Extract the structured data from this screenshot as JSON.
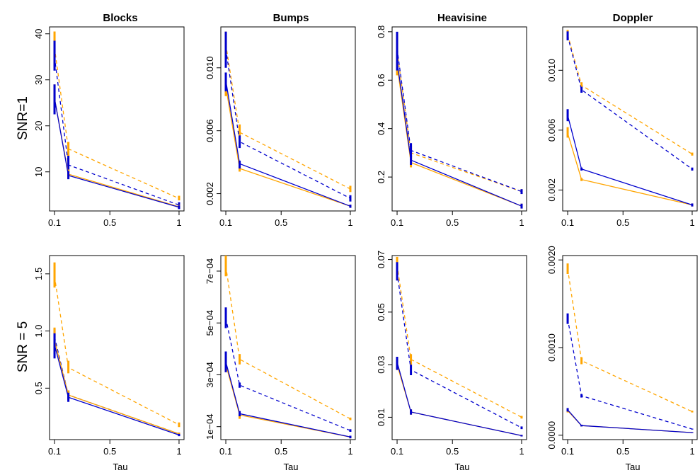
{
  "figure": {
    "column_titles": [
      "Blocks",
      "Bumps",
      "Heavisine",
      "Doppler"
    ],
    "row_labels": [
      "SNR=1",
      "SNR = 5"
    ],
    "x_label": "Tau",
    "colors": {
      "orange": "#FFA500",
      "blue": "#0000CD"
    }
  },
  "chart_data": [
    {
      "type": "line",
      "row": 0,
      "col": 0,
      "title": "Blocks",
      "row_label": "SNR=1",
      "xlabel": "Tau",
      "x": [
        0.1,
        0.2,
        1.0
      ],
      "xticks": [
        {
          "v": 0.1,
          "t": "0.1"
        },
        {
          "v": 0.5,
          "t": "0.5"
        },
        {
          "v": 1.0,
          "t": "1"
        }
      ],
      "yticks": [
        {
          "v": 10,
          "t": "10"
        },
        {
          "v": 20,
          "t": "20"
        },
        {
          "v": 30,
          "t": "30"
        },
        {
          "v": 40,
          "t": "40"
        }
      ],
      "ylim": [
        1.5,
        41.5
      ],
      "series": [
        {
          "color": "orange",
          "dash": true,
          "values": [
            37,
            15,
            4.2
          ],
          "errlo": [
            33,
            13.5,
            3.8
          ],
          "errhi": [
            40.5,
            16.5,
            4.8
          ]
        },
        {
          "color": "blue",
          "dash": true,
          "values": [
            35,
            11.5,
            2.8
          ],
          "errlo": [
            32,
            10.2,
            2.2
          ],
          "errhi": [
            38.5,
            13.5,
            3.4
          ]
        },
        {
          "color": "orange",
          "dash": false,
          "values": [
            26,
            9.5,
            2.4
          ],
          "errlo": [
            23,
            8.5,
            2.0
          ],
          "errhi": [
            29,
            10.5,
            2.8
          ]
        },
        {
          "color": "blue",
          "dash": false,
          "values": [
            26,
            9.2,
            2.3
          ],
          "errlo": [
            22.5,
            8.4,
            1.9
          ],
          "errhi": [
            29,
            10.2,
            2.7
          ]
        }
      ]
    },
    {
      "type": "line",
      "row": 0,
      "col": 1,
      "title": "Bumps",
      "row_label": "",
      "xlabel": "Tau",
      "x": [
        0.1,
        0.2,
        1.0
      ],
      "xticks": [
        {
          "v": 0.1,
          "t": "0.1"
        },
        {
          "v": 0.5,
          "t": "0.5"
        },
        {
          "v": 1.0,
          "t": "1"
        }
      ],
      "yticks": [
        {
          "v": 0.002,
          "t": "0.002"
        },
        {
          "v": 0.006,
          "t": "0.006"
        },
        {
          "v": 0.01,
          "t": "0.010"
        }
      ],
      "ylim": [
        0.0009,
        0.0126
      ],
      "series": [
        {
          "color": "orange",
          "dash": true,
          "values": [
            0.0115,
            0.0059,
            0.0023
          ],
          "errlo": [
            0.0105,
            0.0055,
            0.0021
          ],
          "errhi": [
            0.0123,
            0.0064,
            0.0025
          ]
        },
        {
          "color": "blue",
          "dash": true,
          "values": [
            0.0112,
            0.0053,
            0.0017
          ],
          "errlo": [
            0.01,
            0.0049,
            0.0015
          ],
          "errhi": [
            0.0123,
            0.0057,
            0.0019
          ]
        },
        {
          "color": "orange",
          "dash": false,
          "values": [
            0.0088,
            0.0036,
            0.0012
          ],
          "errlo": [
            0.0082,
            0.0034,
            0.0011
          ],
          "errhi": [
            0.0093,
            0.0038,
            0.0013
          ]
        },
        {
          "color": "blue",
          "dash": false,
          "values": [
            0.0092,
            0.0039,
            0.0012
          ],
          "errlo": [
            0.0085,
            0.0036,
            0.0011
          ],
          "errhi": [
            0.0097,
            0.0041,
            0.0013
          ]
        }
      ]
    },
    {
      "type": "line",
      "row": 0,
      "col": 2,
      "title": "Heavisine",
      "row_label": "",
      "xlabel": "Tau",
      "x": [
        0.1,
        0.2,
        1.0
      ],
      "xticks": [
        {
          "v": 0.1,
          "t": "0.1"
        },
        {
          "v": 0.5,
          "t": "0.5"
        },
        {
          "v": 1.0,
          "t": "1"
        }
      ],
      "yticks": [
        {
          "v": 0.2,
          "t": "0.2"
        },
        {
          "v": 0.4,
          "t": "0.4"
        },
        {
          "v": 0.6,
          "t": "0.6"
        },
        {
          "v": 0.8,
          "t": "0.8"
        }
      ],
      "ylim": [
        0.06,
        0.82
      ],
      "series": [
        {
          "color": "orange",
          "dash": true,
          "values": [
            0.72,
            0.3,
            0.14
          ],
          "errlo": [
            0.66,
            0.27,
            0.13
          ],
          "errhi": [
            0.79,
            0.33,
            0.15
          ]
        },
        {
          "color": "blue",
          "dash": true,
          "values": [
            0.73,
            0.31,
            0.14
          ],
          "errlo": [
            0.66,
            0.28,
            0.13
          ],
          "errhi": [
            0.8,
            0.34,
            0.15
          ]
        },
        {
          "color": "orange",
          "dash": false,
          "values": [
            0.66,
            0.26,
            0.08
          ],
          "errlo": [
            0.62,
            0.24,
            0.07
          ],
          "errhi": [
            0.7,
            0.28,
            0.09
          ]
        },
        {
          "color": "blue",
          "dash": false,
          "values": [
            0.68,
            0.27,
            0.08
          ],
          "errlo": [
            0.64,
            0.25,
            0.07
          ],
          "errhi": [
            0.72,
            0.29,
            0.09
          ]
        }
      ]
    },
    {
      "type": "line",
      "row": 0,
      "col": 3,
      "title": "Doppler",
      "row_label": "",
      "xlabel": "Tau",
      "x": [
        0.1,
        0.2,
        1.0
      ],
      "xticks": [
        {
          "v": 0.1,
          "t": "0.1"
        },
        {
          "v": 0.5,
          "t": "0.5"
        },
        {
          "v": 1.0,
          "t": "1"
        }
      ],
      "yticks": [
        {
          "v": 0.002,
          "t": "0.002"
        },
        {
          "v": 0.006,
          "t": "0.006"
        },
        {
          "v": 0.01,
          "t": "0.010"
        }
      ],
      "ylim": [
        0.0006,
        0.0129
      ],
      "series": [
        {
          "color": "orange",
          "dash": true,
          "values": [
            0.0124,
            0.009,
            0.0044
          ],
          "errlo": [
            0.0121,
            0.0088,
            0.0043
          ],
          "errhi": [
            0.0127,
            0.0092,
            0.0045
          ]
        },
        {
          "color": "blue",
          "dash": true,
          "values": [
            0.0123,
            0.0087,
            0.0034
          ],
          "errlo": [
            0.012,
            0.0085,
            0.0033
          ],
          "errhi": [
            0.0126,
            0.0089,
            0.0035
          ]
        },
        {
          "color": "orange",
          "dash": false,
          "values": [
            0.0058,
            0.0027,
            0.001
          ],
          "errlo": [
            0.0055,
            0.0026,
            0.0009
          ],
          "errhi": [
            0.0062,
            0.0028,
            0.0011
          ]
        },
        {
          "color": "blue",
          "dash": false,
          "values": [
            0.007,
            0.0034,
            0.001
          ],
          "errlo": [
            0.0066,
            0.0033,
            0.0009
          ],
          "errhi": [
            0.0074,
            0.0035,
            0.0011
          ]
        }
      ]
    },
    {
      "type": "line",
      "row": 1,
      "col": 0,
      "title": "",
      "row_label": "SNR = 5",
      "xlabel": "Tau",
      "x": [
        0.1,
        0.2,
        1.0
      ],
      "xticks": [
        {
          "v": 0.1,
          "t": "0.1"
        },
        {
          "v": 0.5,
          "t": "0.5"
        },
        {
          "v": 1.0,
          "t": "1"
        }
      ],
      "yticks": [
        {
          "v": 0.5,
          "t": "0.5"
        },
        {
          "v": 1.0,
          "t": "1.0"
        },
        {
          "v": 1.5,
          "t": "1.5"
        }
      ],
      "ylim": [
        0.05,
        1.66
      ],
      "series": [
        {
          "color": "orange",
          "dash": true,
          "values": [
            1.48,
            0.68,
            0.18
          ],
          "errlo": [
            1.38,
            0.63,
            0.16
          ],
          "errhi": [
            1.6,
            0.74,
            0.2
          ]
        },
        {
          "color": "blue",
          "dash": true,
          "values": [
            0.95,
            0.44,
            0.1
          ],
          "errlo": [
            0.85,
            0.4,
            0.09
          ],
          "errhi": [
            1.02,
            0.48,
            0.11
          ]
        },
        {
          "color": "orange",
          "dash": false,
          "values": [
            0.92,
            0.44,
            0.1
          ],
          "errlo": [
            0.8,
            0.4,
            0.09
          ],
          "errhi": [
            1.03,
            0.48,
            0.11
          ]
        },
        {
          "color": "blue",
          "dash": false,
          "values": [
            0.88,
            0.42,
            0.09
          ],
          "errlo": [
            0.76,
            0.38,
            0.08
          ],
          "errhi": [
            0.98,
            0.46,
            0.1
          ]
        }
      ]
    },
    {
      "type": "line",
      "row": 1,
      "col": 1,
      "title": "",
      "row_label": "",
      "xlabel": "Tau",
      "x": [
        0.1,
        0.2,
        1.0
      ],
      "xticks": [
        {
          "v": 0.1,
          "t": "0.1"
        },
        {
          "v": 0.5,
          "t": "0.5"
        },
        {
          "v": 1.0,
          "t": "1"
        }
      ],
      "yticks": [
        {
          "v": 0.0001,
          "t": "1e−04"
        },
        {
          "v": 0.0003,
          "t": "3e−04"
        },
        {
          "v": 0.0005,
          "t": "5e−04"
        },
        {
          "v": 0.0007,
          "t": "7e−04"
        }
      ],
      "ylim": [
        5e-05,
        0.00076
      ],
      "series": [
        {
          "color": "orange",
          "dash": true,
          "values": [
            0.00072,
            0.00036,
            0.00013
          ],
          "errlo": [
            0.00068,
            0.00034,
            0.000125
          ],
          "errhi": [
            0.00076,
            0.00038,
            0.000135
          ]
        },
        {
          "color": "blue",
          "dash": true,
          "values": [
            0.00052,
            0.00026,
            8.5e-05
          ],
          "errlo": [
            0.00048,
            0.00025,
            8e-05
          ],
          "errhi": [
            0.00056,
            0.00027,
            9e-05
          ]
        },
        {
          "color": "orange",
          "dash": false,
          "values": [
            0.00034,
            0.000145,
            6e-05
          ],
          "errlo": [
            0.00031,
            0.00013,
            5.5e-05
          ],
          "errhi": [
            0.00037,
            0.00016,
            6.5e-05
          ]
        },
        {
          "color": "blue",
          "dash": false,
          "values": [
            0.00035,
            0.00015,
            6e-05
          ],
          "errlo": [
            0.00031,
            0.00014,
            5.5e-05
          ],
          "errhi": [
            0.00039,
            0.00016,
            6.5e-05
          ]
        }
      ]
    },
    {
      "type": "line",
      "row": 1,
      "col": 2,
      "title": "",
      "row_label": "",
      "xlabel": "Tau",
      "x": [
        0.1,
        0.2,
        1.0
      ],
      "xticks": [
        {
          "v": 0.1,
          "t": "0.1"
        },
        {
          "v": 0.5,
          "t": "0.5"
        },
        {
          "v": 1.0,
          "t": "1"
        }
      ],
      "yticks": [
        {
          "v": 0.01,
          "t": "0.01"
        },
        {
          "v": 0.03,
          "t": "0.03"
        },
        {
          "v": 0.05,
          "t": "0.05"
        },
        {
          "v": 0.07,
          "t": "0.07"
        }
      ],
      "ylim": [
        0.0015,
        0.0715
      ],
      "series": [
        {
          "color": "orange",
          "dash": true,
          "values": [
            0.068,
            0.032,
            0.01
          ],
          "errlo": [
            0.064,
            0.03,
            0.0095
          ],
          "errhi": [
            0.071,
            0.034,
            0.0105
          ]
        },
        {
          "color": "blue",
          "dash": true,
          "values": [
            0.065,
            0.028,
            0.006
          ],
          "errlo": [
            0.062,
            0.026,
            0.0055
          ],
          "errhi": [
            0.069,
            0.03,
            0.0065
          ]
        },
        {
          "color": "orange",
          "dash": false,
          "values": [
            0.03,
            0.012,
            0.003
          ],
          "errlo": [
            0.028,
            0.011,
            0.0027
          ],
          "errhi": [
            0.032,
            0.013,
            0.0033
          ]
        },
        {
          "color": "blue",
          "dash": false,
          "values": [
            0.031,
            0.012,
            0.003
          ],
          "errlo": [
            0.028,
            0.011,
            0.0027
          ],
          "errhi": [
            0.033,
            0.013,
            0.0033
          ]
        }
      ]
    },
    {
      "type": "line",
      "row": 1,
      "col": 3,
      "title": "",
      "row_label": "",
      "xlabel": "Tau",
      "x": [
        0.1,
        0.2,
        1.0
      ],
      "xticks": [
        {
          "v": 0.1,
          "t": "0.1"
        },
        {
          "v": 0.5,
          "t": "0.5"
        },
        {
          "v": 1.0,
          "t": "1"
        }
      ],
      "yticks": [
        {
          "v": 0.0,
          "t": "0.0000"
        },
        {
          "v": 0.001,
          "t": "0.0010"
        },
        {
          "v": 0.002,
          "t": "0.0020"
        }
      ],
      "ylim": [
        -5e-05,
        0.00205
      ],
      "series": [
        {
          "color": "orange",
          "dash": true,
          "values": [
            0.0019,
            0.00085,
            0.00027
          ],
          "errlo": [
            0.00184,
            0.00081,
            0.00026
          ],
          "errhi": [
            0.00196,
            0.00089,
            0.00028
          ]
        },
        {
          "color": "blue",
          "dash": true,
          "values": [
            0.00133,
            0.00045,
            7e-05
          ],
          "errlo": [
            0.00127,
            0.00043,
            6.5e-05
          ],
          "errhi": [
            0.00139,
            0.00047,
            7.5e-05
          ]
        },
        {
          "color": "orange",
          "dash": false,
          "values": [
            0.00028,
            0.00011,
            3e-05
          ],
          "errlo": [
            0.00026,
            0.0001,
            2.5e-05
          ],
          "errhi": [
            0.0003,
            0.00012,
            3.5e-05
          ]
        },
        {
          "color": "blue",
          "dash": false,
          "values": [
            0.00029,
            0.00011,
            3e-05
          ],
          "errlo": [
            0.00027,
            0.0001,
            2.5e-05
          ],
          "errhi": [
            0.00031,
            0.00012,
            3.5e-05
          ]
        }
      ]
    }
  ]
}
